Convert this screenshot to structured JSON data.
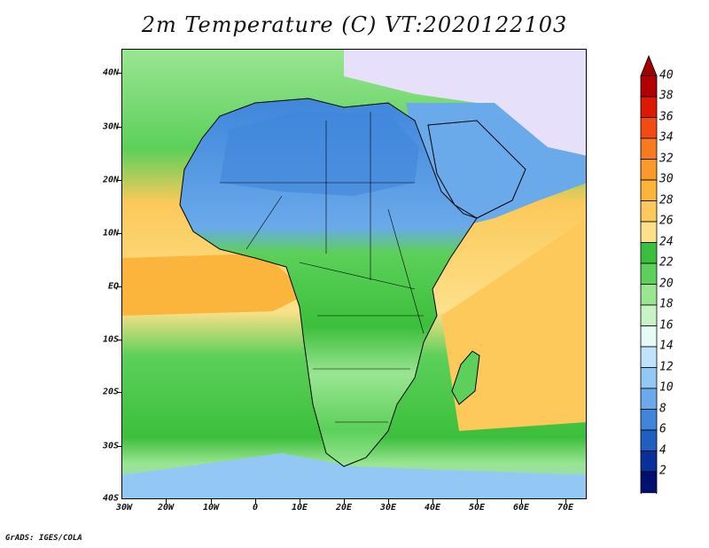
{
  "title": "2m Temperature (C) VT:2020122103",
  "credit": "GrADS: IGES/COLA",
  "lat_labels": [
    "40N",
    "30N",
    "20N",
    "10N",
    "EQ",
    "10S",
    "20S",
    "30S",
    "40S"
  ],
  "lon_labels": [
    "30W",
    "20W",
    "10W",
    "0",
    "10E",
    "20E",
    "30E",
    "40E",
    "50E",
    "60E",
    "70E"
  ],
  "colorbar": {
    "labels": [
      "40",
      "38",
      "36",
      "34",
      "32",
      "30",
      "28",
      "26",
      "24",
      "22",
      "20",
      "18",
      "16",
      "14",
      "12",
      "10",
      "8",
      "6",
      "4",
      "2"
    ],
    "colors": [
      "#b00000",
      "#dd1a00",
      "#f24a10",
      "#f77a1e",
      "#f99a2a",
      "#fbb43c",
      "#fcc95a",
      "#fde08a",
      "#3cbf3c",
      "#5cd05a",
      "#9ae592",
      "#c8f3c4",
      "#e6fbf6",
      "#bfe3fb",
      "#94c8f4",
      "#6aa9ea",
      "#3f86db",
      "#1e5fc0",
      "#08309a",
      "#001070"
    ],
    "top_arrow_color": "#a00000",
    "bottom_arrow_color": "#e6e0fa"
  },
  "map_colors": {
    "ocean_warm": "#fbd278",
    "ocean_mid": "#9ae592",
    "ocean_cool": "#3cbf3c",
    "ocean_cold": "#94c8f4",
    "land_cold": "#6aa9ea",
    "land_mild": "#5cd05a",
    "land_hot": "#fde08a",
    "eurasia": "#e6e0fa"
  }
}
